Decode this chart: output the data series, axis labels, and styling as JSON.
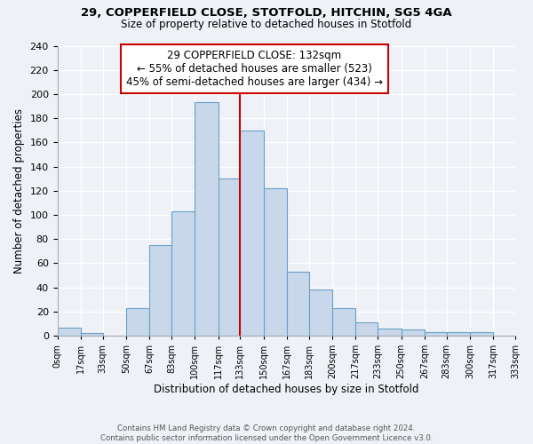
{
  "title_line1": "29, COPPERFIELD CLOSE, STOTFOLD, HITCHIN, SG5 4GA",
  "title_line2": "Size of property relative to detached houses in Stotfold",
  "xlabel": "Distribution of detached houses by size in Stotfold",
  "ylabel": "Number of detached properties",
  "bin_edges": [
    0,
    17,
    33,
    50,
    67,
    83,
    100,
    117,
    133,
    150,
    167,
    183,
    200,
    217,
    233,
    250,
    267,
    283,
    300,
    317,
    333
  ],
  "bin_counts": [
    7,
    2,
    0,
    23,
    75,
    103,
    193,
    130,
    170,
    122,
    53,
    38,
    23,
    11,
    6,
    5,
    3,
    3,
    3,
    0
  ],
  "bar_color": "#c8d8ea",
  "bar_edge_color": "#6aa0c8",
  "vline_x": 133,
  "vline_color": "#cc0000",
  "annotation_title": "29 COPPERFIELD CLOSE: 132sqm",
  "annotation_line1": "← 55% of detached houses are smaller (523)",
  "annotation_line2": "45% of semi-detached houses are larger (434) →",
  "annotation_box_color": "#ffffff",
  "annotation_box_edgecolor": "#cc0000",
  "ylim": [
    0,
    240
  ],
  "yticks": [
    0,
    20,
    40,
    60,
    80,
    100,
    120,
    140,
    160,
    180,
    200,
    220,
    240
  ],
  "tick_labels": [
    "0sqm",
    "17sqm",
    "33sqm",
    "50sqm",
    "67sqm",
    "83sqm",
    "100sqm",
    "117sqm",
    "133sqm",
    "150sqm",
    "167sqm",
    "183sqm",
    "200sqm",
    "217sqm",
    "233sqm",
    "250sqm",
    "267sqm",
    "283sqm",
    "300sqm",
    "317sqm",
    "333sqm"
  ],
  "footer_line1": "Contains HM Land Registry data © Crown copyright and database right 2024.",
  "footer_line2": "Contains public sector information licensed under the Open Government Licence v3.0.",
  "background_color": "#eef2f7",
  "grid_color": "#ffffff"
}
